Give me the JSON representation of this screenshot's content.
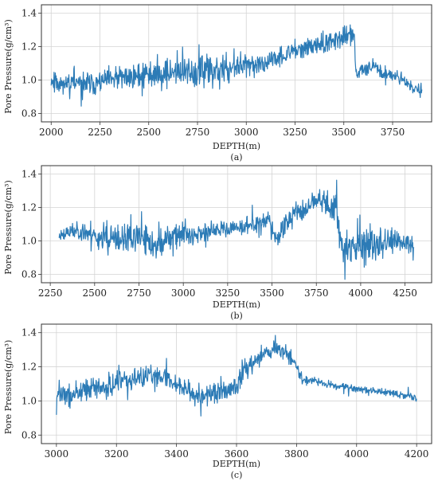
{
  "chart_data": [
    {
      "type": "line",
      "caption": "(a)",
      "xlabel": "DEPTH(m)",
      "ylabel": "Pore Pressure(g/cm³)",
      "xlim": [
        1950,
        3950
      ],
      "ylim": [
        0.75,
        1.45
      ],
      "xticks": [
        2000,
        2250,
        2500,
        2750,
        3000,
        3250,
        3500,
        3750
      ],
      "yticks": [
        0.8,
        1.0,
        1.2,
        1.4
      ],
      "xtick_labels": [
        "2000",
        "2250",
        "2500",
        "2750",
        "3000",
        "3250",
        "3500",
        "3750"
      ],
      "ytick_labels": [
        "0.8",
        "1.0",
        "1.2",
        "1.4"
      ],
      "grid": true,
      "color": "#2c7bb6",
      "x_start": 2000,
      "x_end": 3900,
      "noise_seed": 11,
      "trend": [
        [
          2000,
          1.0
        ],
        [
          2050,
          0.98
        ],
        [
          2100,
          0.99
        ],
        [
          2150,
          0.97
        ],
        [
          2250,
          0.99
        ],
        [
          2400,
          1.02
        ],
        [
          2550,
          1.04
        ],
        [
          2750,
          1.05
        ],
        [
          2900,
          1.06
        ],
        [
          3000,
          1.08
        ],
        [
          3100,
          1.1
        ],
        [
          3200,
          1.15
        ],
        [
          3300,
          1.19
        ],
        [
          3400,
          1.22
        ],
        [
          3480,
          1.25
        ],
        [
          3540,
          1.27
        ],
        [
          3555,
          1.26
        ],
        [
          3560,
          1.03
        ],
        [
          3600,
          1.08
        ],
        [
          3650,
          1.08
        ],
        [
          3700,
          1.04
        ],
        [
          3780,
          1.02
        ],
        [
          3850,
          0.96
        ],
        [
          3900,
          0.93
        ]
      ],
      "noise": [
        [
          2000,
          0.04
        ],
        [
          2150,
          0.06
        ],
        [
          2300,
          0.05
        ],
        [
          2500,
          0.06
        ],
        [
          2700,
          0.07
        ],
        [
          2900,
          0.07
        ],
        [
          3100,
          0.04
        ],
        [
          3300,
          0.04
        ],
        [
          3520,
          0.05
        ],
        [
          3560,
          0.03
        ],
        [
          3700,
          0.03
        ],
        [
          3900,
          0.02
        ]
      ]
    },
    {
      "type": "line",
      "caption": "(b)",
      "xlabel": "DEPTH(m)",
      "ylabel": "Pore Pressure(g/cm³)",
      "xlim": [
        2200,
        4400
      ],
      "ylim": [
        0.75,
        1.45
      ],
      "xticks": [
        2250,
        2500,
        2750,
        3000,
        3250,
        3500,
        3750,
        4000,
        4250
      ],
      "yticks": [
        0.8,
        1.0,
        1.2,
        1.4
      ],
      "xtick_labels": [
        "2250",
        "2500",
        "2750",
        "3000",
        "3250",
        "3500",
        "3750",
        "4000",
        "4250"
      ],
      "ytick_labels": [
        "0.8",
        "1.0",
        "1.2",
        "1.4"
      ],
      "grid": true,
      "color": "#2c7bb6",
      "x_start": 2300,
      "x_end": 4300,
      "noise_seed": 23,
      "trend": [
        [
          2300,
          1.03
        ],
        [
          2400,
          1.07
        ],
        [
          2500,
          1.03
        ],
        [
          2600,
          1.0
        ],
        [
          2750,
          1.02
        ],
        [
          2850,
          0.97
        ],
        [
          2950,
          1.04
        ],
        [
          3100,
          1.05
        ],
        [
          3250,
          1.07
        ],
        [
          3400,
          1.1
        ],
        [
          3480,
          1.12
        ],
        [
          3520,
          1.0
        ],
        [
          3560,
          1.08
        ],
        [
          3620,
          1.16
        ],
        [
          3700,
          1.2
        ],
        [
          3760,
          1.26
        ],
        [
          3800,
          1.22
        ],
        [
          3860,
          1.19
        ],
        [
          3900,
          0.95
        ],
        [
          4000,
          0.97
        ],
        [
          4150,
          0.99
        ],
        [
          4300,
          0.98
        ]
      ],
      "noise": [
        [
          2300,
          0.03
        ],
        [
          2500,
          0.05
        ],
        [
          2700,
          0.07
        ],
        [
          2900,
          0.06
        ],
        [
          3100,
          0.04
        ],
        [
          3300,
          0.03
        ],
        [
          3500,
          0.05
        ],
        [
          3700,
          0.04
        ],
        [
          3900,
          0.07
        ],
        [
          4100,
          0.07
        ],
        [
          4300,
          0.05
        ]
      ]
    },
    {
      "type": "line",
      "caption": "(c)",
      "xlabel": "DEPTH(m)",
      "ylabel": "Pore Pressure(g/cm³)",
      "xlim": [
        2950,
        4250
      ],
      "ylim": [
        0.75,
        1.45
      ],
      "xticks": [
        3000,
        3200,
        3400,
        3600,
        3800,
        4000,
        4200
      ],
      "yticks": [
        0.8,
        1.0,
        1.2,
        1.4
      ],
      "xtick_labels": [
        "3000",
        "3200",
        "3400",
        "3600",
        "3800",
        "4000",
        "4200"
      ],
      "ytick_labels": [
        "0.8",
        "1.0",
        "1.2",
        "1.4"
      ],
      "grid": true,
      "color": "#2c7bb6",
      "x_start": 3000,
      "x_end": 4200,
      "noise_seed": 37,
      "trend": [
        [
          3000,
          1.04
        ],
        [
          3050,
          1.03
        ],
        [
          3100,
          1.06
        ],
        [
          3200,
          1.1
        ],
        [
          3300,
          1.14
        ],
        [
          3350,
          1.15
        ],
        [
          3400,
          1.1
        ],
        [
          3450,
          1.05
        ],
        [
          3500,
          1.03
        ],
        [
          3550,
          1.05
        ],
        [
          3600,
          1.08
        ],
        [
          3620,
          1.17
        ],
        [
          3650,
          1.22
        ],
        [
          3700,
          1.29
        ],
        [
          3740,
          1.31
        ],
        [
          3780,
          1.26
        ],
        [
          3800,
          1.2
        ],
        [
          3820,
          1.13
        ],
        [
          3900,
          1.1
        ],
        [
          4000,
          1.07
        ],
        [
          4100,
          1.05
        ],
        [
          4200,
          1.02
        ]
      ],
      "noise": [
        [
          3000,
          0.05
        ],
        [
          3200,
          0.05
        ],
        [
          3400,
          0.04
        ],
        [
          3600,
          0.05
        ],
        [
          3700,
          0.04
        ],
        [
          3800,
          0.03
        ],
        [
          3850,
          0.015
        ],
        [
          4200,
          0.015
        ]
      ]
    }
  ]
}
